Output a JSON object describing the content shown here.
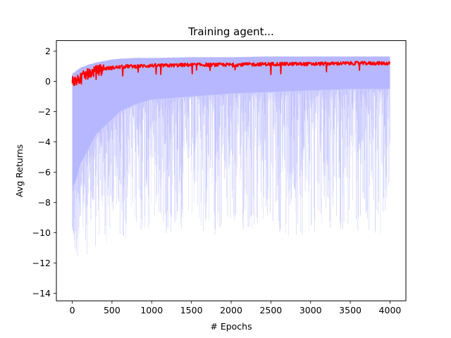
{
  "chart_data": {
    "type": "line",
    "title": "Training agent...",
    "xlabel": "# Epochs",
    "ylabel": "Avg Returns",
    "xlim": [
      -200,
      4200
    ],
    "ylim": [
      -14.5,
      2.7
    ],
    "xticks": [
      0,
      500,
      1000,
      1500,
      2000,
      2500,
      3000,
      3500,
      4000
    ],
    "yticks": [
      -14,
      -12,
      -10,
      -8,
      -6,
      -4,
      -2,
      0,
      2
    ],
    "grid": false,
    "legend": "none",
    "colors": {
      "mean": "#ff0000",
      "band": "#aaaaff"
    },
    "series": [
      {
        "role": "mean",
        "x": [
          0,
          50,
          100,
          150,
          200,
          300,
          400,
          500,
          600,
          700,
          800,
          1000,
          1200,
          1500,
          2000,
          2500,
          3000,
          3500,
          4000
        ],
        "values": [
          0.05,
          0.0,
          0.2,
          0.4,
          0.5,
          0.7,
          0.85,
          0.9,
          0.95,
          1.0,
          1.0,
          1.05,
          1.05,
          1.1,
          1.1,
          1.15,
          1.15,
          1.2,
          1.2
        ]
      },
      {
        "role": "band-upper",
        "x": [
          0,
          50,
          100,
          200,
          300,
          400,
          500,
          600,
          800,
          1000,
          1500,
          2000,
          2500,
          3000,
          3500,
          4000
        ],
        "values": [
          0.5,
          0.7,
          0.9,
          1.1,
          1.25,
          1.35,
          1.45,
          1.5,
          1.55,
          1.55,
          1.6,
          1.6,
          1.65,
          1.65,
          1.65,
          1.65
        ]
      },
      {
        "role": "band-lower",
        "x": [
          0,
          50,
          100,
          200,
          300,
          400,
          500,
          600,
          800,
          1000,
          1500,
          2000,
          2500,
          3000,
          3500,
          4000
        ],
        "values": [
          -7.0,
          -6.5,
          -5.5,
          -4.5,
          -3.5,
          -3.0,
          -2.5,
          -2.0,
          -1.5,
          -1.2,
          -1.0,
          -0.8,
          -0.7,
          -0.6,
          -0.5,
          -0.5
        ]
      },
      {
        "role": "band-min",
        "x": [
          0,
          100,
          200,
          400,
          600,
          1000,
          1500,
          2000,
          2500,
          3000,
          3500,
          4000
        ],
        "values": [
          -12.5,
          -11.5,
          -11.5,
          -11.0,
          -10.5,
          -10.2,
          -10.2,
          -10.2,
          -10.2,
          -10.2,
          -10.2,
          -10.2
        ]
      }
    ]
  }
}
